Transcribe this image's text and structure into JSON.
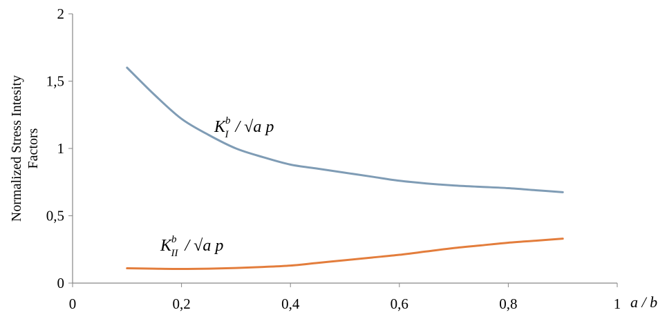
{
  "chart_data": {
    "type": "line",
    "xlabel": "a / b",
    "ylabel": [
      "Normalized Stress Intesity",
      "Factors"
    ],
    "xlim": [
      0,
      1
    ],
    "ylim": [
      0,
      2
    ],
    "x_ticks": [
      "0",
      "0,2",
      "0,4",
      "0,6",
      "0,8",
      "1"
    ],
    "y_ticks": [
      "0",
      "0,5",
      "1",
      "1,5",
      "2"
    ],
    "x_tick_values": [
      0,
      0.2,
      0.4,
      0.6,
      0.8,
      1
    ],
    "y_tick_values": [
      0,
      0.5,
      1,
      1.5,
      2
    ],
    "grid": false,
    "series": [
      {
        "color": "#7f9cb5",
        "annotation": {
          "K": "K",
          "sup": "b",
          "sub": "I",
          "rest": "/ √a p"
        },
        "x": [
          0.1,
          0.15,
          0.2,
          0.25,
          0.3,
          0.35,
          0.4,
          0.45,
          0.5,
          0.55,
          0.6,
          0.65,
          0.7,
          0.75,
          0.8,
          0.85,
          0.9
        ],
        "y": [
          1.6,
          1.4,
          1.22,
          1.1,
          1.0,
          0.935,
          0.88,
          0.85,
          0.82,
          0.79,
          0.76,
          0.74,
          0.725,
          0.715,
          0.705,
          0.69,
          0.675
        ]
      },
      {
        "color": "#e37d3c",
        "annotation": {
          "K": "K",
          "sup": "b",
          "sub": "II",
          "rest": "/ √a p"
        },
        "x": [
          0.1,
          0.15,
          0.2,
          0.25,
          0.3,
          0.35,
          0.4,
          0.45,
          0.5,
          0.55,
          0.6,
          0.65,
          0.7,
          0.75,
          0.8,
          0.85,
          0.9
        ],
        "y": [
          0.11,
          0.107,
          0.105,
          0.107,
          0.112,
          0.12,
          0.13,
          0.15,
          0.17,
          0.19,
          0.21,
          0.235,
          0.26,
          0.28,
          0.3,
          0.315,
          0.33
        ]
      }
    ]
  }
}
